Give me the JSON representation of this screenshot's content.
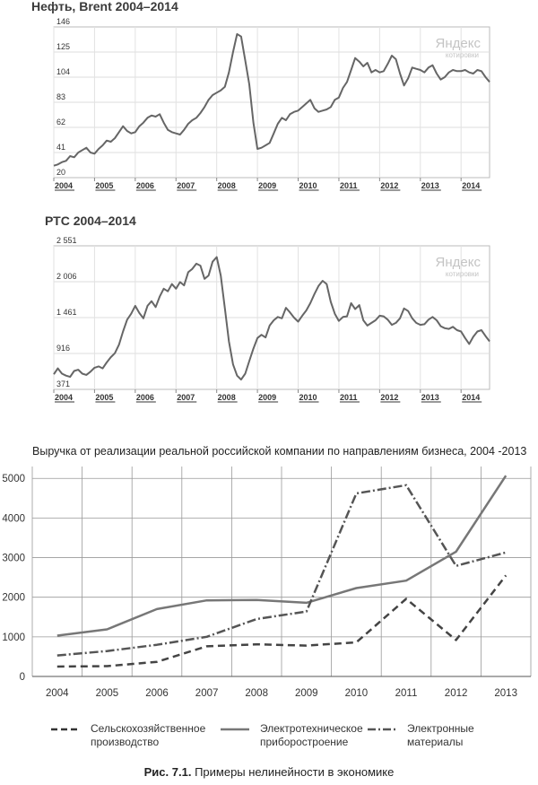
{
  "figure_caption": {
    "label": "Рис. 7.1.",
    "text": "Примеры нелинейности в экономике"
  },
  "watermark": {
    "brand": "Яндекс",
    "sub": "котировки"
  },
  "chart_data": [
    {
      "type": "line",
      "title": "Нефть, Brent 2004–2014",
      "yticks": [
        "146",
        "125",
        "104",
        "83",
        "62",
        "41",
        "20"
      ],
      "ylim": [
        20,
        146
      ],
      "xticks": [
        "2004",
        "2005",
        "2006",
        "2007",
        "2008",
        "2009",
        "2010",
        "2011",
        "2012",
        "2013",
        "2014"
      ],
      "xlim": [
        2004,
        2014.7
      ],
      "grid": true,
      "color": "#666666",
      "series": [
        {
          "x": [
            2004.0,
            2004.1,
            2004.2,
            2004.3,
            2004.4,
            2004.5,
            2004.6,
            2004.7,
            2004.8,
            2004.9,
            2005.0,
            2005.1,
            2005.2,
            2005.3,
            2005.4,
            2005.5,
            2005.6,
            2005.7,
            2005.8,
            2005.9,
            2006.0,
            2006.1,
            2006.2,
            2006.3,
            2006.4,
            2006.5,
            2006.6,
            2006.7,
            2006.8,
            2006.9,
            2007.0,
            2007.1,
            2007.2,
            2007.3,
            2007.4,
            2007.5,
            2007.6,
            2007.7,
            2007.8,
            2007.9,
            2008.0,
            2008.1,
            2008.2,
            2008.3,
            2008.4,
            2008.5,
            2008.6,
            2008.7,
            2008.8,
            2008.9,
            2009.0,
            2009.1,
            2009.2,
            2009.3,
            2009.4,
            2009.5,
            2009.6,
            2009.7,
            2009.8,
            2009.9,
            2010.0,
            2010.1,
            2010.2,
            2010.3,
            2010.4,
            2010.5,
            2010.6,
            2010.7,
            2010.8,
            2010.9,
            2011.0,
            2011.1,
            2011.2,
            2011.3,
            2011.4,
            2011.5,
            2011.6,
            2011.7,
            2011.8,
            2011.9,
            2012.0,
            2012.1,
            2012.2,
            2012.3,
            2012.4,
            2012.5,
            2012.6,
            2012.7,
            2012.8,
            2012.9,
            2013.0,
            2013.1,
            2013.2,
            2013.3,
            2013.4,
            2013.5,
            2013.6,
            2013.7,
            2013.8,
            2013.9,
            2014.0,
            2014.1,
            2014.2,
            2014.3,
            2014.4,
            2014.5,
            2014.6,
            2014.7
          ],
          "y": [
            30,
            31,
            33,
            34,
            38,
            37,
            41,
            43,
            45,
            41,
            40,
            44,
            47,
            51,
            50,
            53,
            58,
            63,
            59,
            57,
            58,
            63,
            66,
            70,
            72,
            71,
            73,
            66,
            60,
            58,
            57,
            56,
            60,
            65,
            68,
            70,
            74,
            79,
            85,
            89,
            91,
            93,
            96,
            108,
            125,
            140,
            138,
            118,
            98,
            66,
            44,
            45,
            47,
            49,
            57,
            65,
            70,
            68,
            73,
            75,
            76,
            79,
            82,
            85,
            78,
            75,
            76,
            77,
            79,
            85,
            87,
            95,
            100,
            110,
            120,
            117,
            113,
            116,
            108,
            110,
            108,
            109,
            115,
            122,
            119,
            107,
            97,
            103,
            112,
            111,
            110,
            108,
            112,
            114,
            107,
            102,
            104,
            108,
            110,
            109,
            109,
            110,
            108,
            107,
            110,
            109,
            104,
            100
          ]
        }
      ]
    },
    {
      "type": "line",
      "title": "РТС 2004–2014",
      "yticks": [
        "2 551",
        "2 006",
        "1 461",
        "916",
        "371"
      ],
      "ylim": [
        371,
        2551
      ],
      "xticks": [
        "2004",
        "2005",
        "2006",
        "2007",
        "2008",
        "2009",
        "2010",
        "2011",
        "2012",
        "2013",
        "2014"
      ],
      "xlim": [
        2004,
        2014.7
      ],
      "grid": true,
      "color": "#666666",
      "series": [
        {
          "x": [
            2004.0,
            2004.1,
            2004.2,
            2004.3,
            2004.4,
            2004.5,
            2004.6,
            2004.7,
            2004.8,
            2004.9,
            2005.0,
            2005.1,
            2005.2,
            2005.3,
            2005.4,
            2005.5,
            2005.6,
            2005.7,
            2005.8,
            2005.9,
            2006.0,
            2006.1,
            2006.2,
            2006.3,
            2006.4,
            2006.5,
            2006.6,
            2006.7,
            2006.8,
            2006.9,
            2007.0,
            2007.1,
            2007.2,
            2007.3,
            2007.4,
            2007.5,
            2007.6,
            2007.7,
            2007.8,
            2007.9,
            2008.0,
            2008.1,
            2008.2,
            2008.3,
            2008.4,
            2008.5,
            2008.6,
            2008.7,
            2008.8,
            2008.9,
            2009.0,
            2009.1,
            2009.2,
            2009.3,
            2009.4,
            2009.5,
            2009.6,
            2009.7,
            2009.8,
            2009.9,
            2010.0,
            2010.1,
            2010.2,
            2010.3,
            2010.4,
            2010.5,
            2010.6,
            2010.7,
            2010.8,
            2010.9,
            2011.0,
            2011.1,
            2011.2,
            2011.3,
            2011.4,
            2011.5,
            2011.6,
            2011.7,
            2011.8,
            2011.9,
            2012.0,
            2012.1,
            2012.2,
            2012.3,
            2012.4,
            2012.5,
            2012.6,
            2012.7,
            2012.8,
            2012.9,
            2013.0,
            2013.1,
            2013.2,
            2013.3,
            2013.4,
            2013.5,
            2013.6,
            2013.7,
            2013.8,
            2013.9,
            2014.0,
            2014.1,
            2014.2,
            2014.3,
            2014.4,
            2014.5,
            2014.6,
            2014.7
          ],
          "y": [
            600,
            690,
            610,
            580,
            560,
            650,
            670,
            610,
            590,
            640,
            700,
            720,
            690,
            780,
            860,
            920,
            1050,
            1250,
            1430,
            1520,
            1640,
            1530,
            1450,
            1640,
            1710,
            1620,
            1780,
            1900,
            1860,
            1970,
            1900,
            2000,
            1950,
            2150,
            2200,
            2280,
            2250,
            2050,
            2100,
            2310,
            2380,
            2100,
            1600,
            1100,
            750,
            580,
            520,
            610,
            800,
            990,
            1150,
            1200,
            1160,
            1340,
            1420,
            1470,
            1450,
            1610,
            1540,
            1460,
            1400,
            1490,
            1570,
            1680,
            1820,
            1940,
            2020,
            1970,
            1700,
            1520,
            1410,
            1470,
            1480,
            1680,
            1590,
            1650,
            1420,
            1340,
            1380,
            1420,
            1490,
            1480,
            1430,
            1350,
            1380,
            1450,
            1600,
            1560,
            1450,
            1380,
            1350,
            1360,
            1430,
            1470,
            1420,
            1330,
            1300,
            1290,
            1320,
            1270,
            1250,
            1150,
            1060,
            1170,
            1250,
            1270,
            1180,
            1100
          ]
        }
      ]
    },
    {
      "type": "line",
      "title": "Выручка от реализации реальной российской компании по направлениям бизнеса, 2004 -2013",
      "categories": [
        "2004",
        "2005",
        "2006",
        "2007",
        "2008",
        "2009",
        "2010",
        "2011",
        "2012",
        "2013"
      ],
      "yticks": [
        "5000",
        "4000",
        "3000",
        "2000",
        "1000",
        "0"
      ],
      "ylim": [
        0,
        5300
      ],
      "grid": true,
      "legend_placement": "bottom",
      "series": [
        {
          "name": "Сельскохозяйственное производство",
          "style": "dashed",
          "color": "#444444",
          "values": [
            250,
            260,
            370,
            760,
            810,
            780,
            860,
            1960,
            920,
            2550
          ]
        },
        {
          "name": "Электротехническое приборостроение",
          "style": "solid",
          "color": "#777777",
          "values": [
            1030,
            1190,
            1700,
            1920,
            1930,
            1860,
            2230,
            2420,
            3150,
            5070
          ]
        },
        {
          "name": "Электронные материалы",
          "style": "dashdot",
          "color": "#555555",
          "values": [
            530,
            640,
            800,
            1000,
            1450,
            1640,
            4620,
            4830,
            2790,
            3130
          ]
        }
      ]
    }
  ]
}
